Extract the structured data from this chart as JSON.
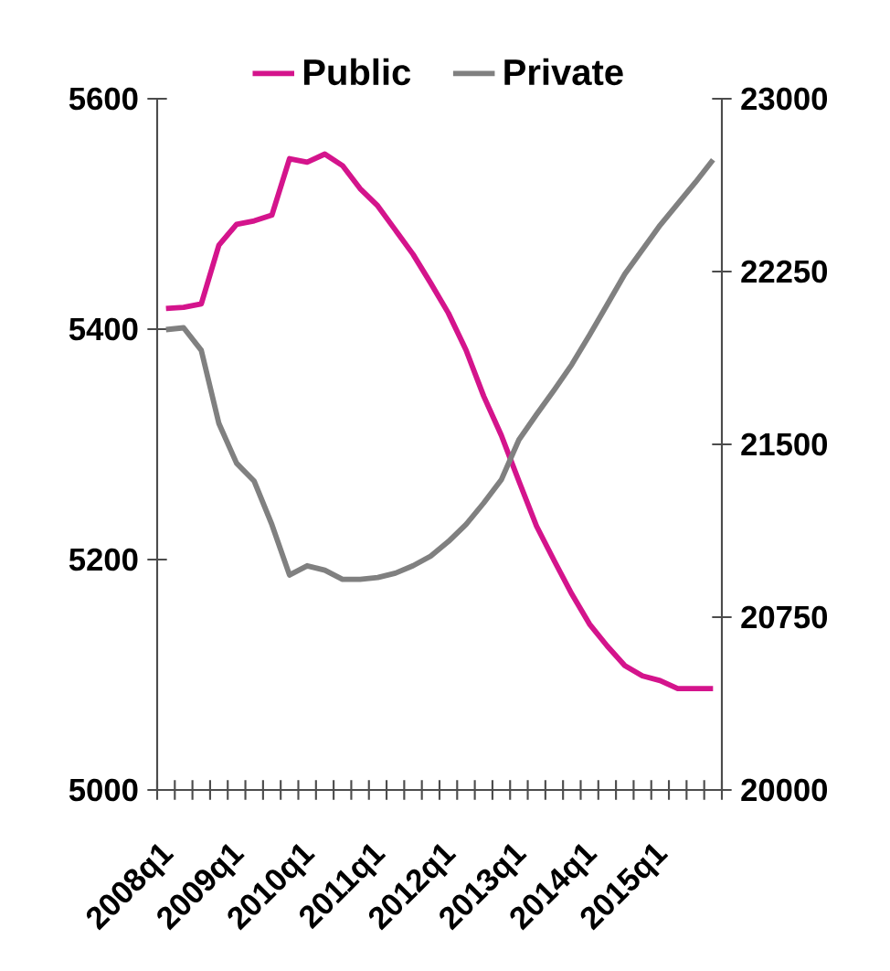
{
  "chart_data": {
    "type": "line",
    "categories": [
      "2008q1",
      null,
      null,
      null,
      "2009q1",
      null,
      null,
      null,
      "2010q1",
      null,
      null,
      null,
      "2011q1",
      null,
      null,
      null,
      "2012q1",
      null,
      null,
      null,
      "2013q1",
      null,
      null,
      null,
      "2014q1",
      null,
      null,
      null,
      "2015q1",
      null,
      null,
      null
    ],
    "series": [
      {
        "name": "Public",
        "color": "#d4148c",
        "values": [
          5418,
          5419,
          5422,
          5473,
          5491,
          5494,
          5499,
          5548,
          5545,
          5552,
          5542,
          5522,
          5507,
          5486,
          5465,
          5440,
          5414,
          5382,
          5342,
          5308,
          5268,
          5229,
          5199,
          5170,
          5144,
          5125,
          5108,
          5099,
          5095,
          5088,
          5088,
          5088
        ]
      },
      {
        "name": "Private",
        "color": "#808080",
        "axis": "y2",
        "values": [
          21998,
          22006,
          21908,
          21590,
          21418,
          21340,
          21152,
          20933,
          20973,
          20954,
          20914,
          20914,
          20922,
          20941,
          20973,
          21015,
          21078,
          21152,
          21245,
          21346,
          21520,
          21630,
          21736,
          21847,
          21974,
          22106,
          22239,
          22345,
          22451,
          22544,
          22637,
          22735
        ]
      }
    ],
    "ylim": [
      5000,
      5600
    ],
    "yticks": [
      5000,
      5200,
      5400,
      5600
    ],
    "y2lim": [
      20000,
      23000
    ],
    "y2ticks": [
      20000,
      20750,
      21500,
      22250,
      23000
    ],
    "grid": false,
    "legend": "top",
    "marker": "none",
    "line_style": "solid"
  }
}
